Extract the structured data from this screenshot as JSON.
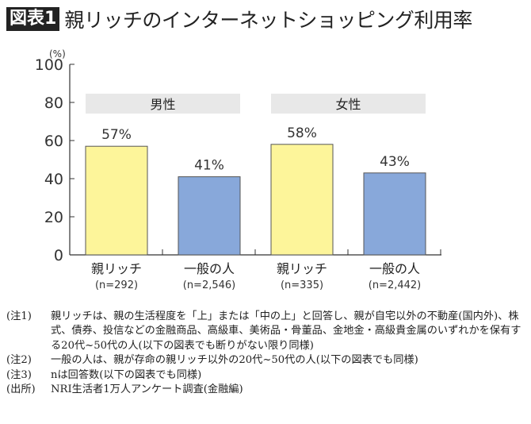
{
  "header": {
    "badge": "図表1",
    "title": "親リッチのインターネットショッピング利用率"
  },
  "chart_data": {
    "type": "bar",
    "title": "親リッチのインターネットショッピング利用率",
    "ylabel": "(%)",
    "ylim": [
      0,
      100
    ],
    "yticks": [
      0,
      20,
      40,
      60,
      80,
      100
    ],
    "groups": [
      "男性",
      "女性"
    ],
    "categories": [
      "親リッチ",
      "一般の人",
      "親リッチ",
      "一般の人"
    ],
    "sample_sizes": [
      "(n=292)",
      "(n=2,546)",
      "(n=335)",
      "(n=2,442)"
    ],
    "values": [
      57,
      41,
      58,
      43
    ],
    "data_labels": [
      "57%",
      "41%",
      "58%",
      "43%"
    ],
    "colors": [
      "#fdf59a",
      "#88a8da",
      "#fdf59a",
      "#88a8da"
    ],
    "group_band_color": "#e8e8e8",
    "grid": false
  },
  "notes": [
    {
      "label": "(注1)",
      "text": "親リッチは、親の生活程度を「上」または「中の上」と回答し、親が自宅以外の不動産(国内外)、株式、債券、投信などの金融商品、高級車、美術品・骨董品、金地金・高級貴金属のいずれかを保有する20代~50代の人(以下の図表でも断りがない限り同様)"
    },
    {
      "label": "(注2)",
      "text": "一般の人は、親が存命の親リッチ以外の20代~50代の人(以下の図表でも同様)"
    },
    {
      "label": "(注3)",
      "text": "nは回答数(以下の図表でも同様)"
    },
    {
      "label": "(出所)",
      "text": "NRI生活者1万人アンケート調査(金融編)"
    }
  ]
}
